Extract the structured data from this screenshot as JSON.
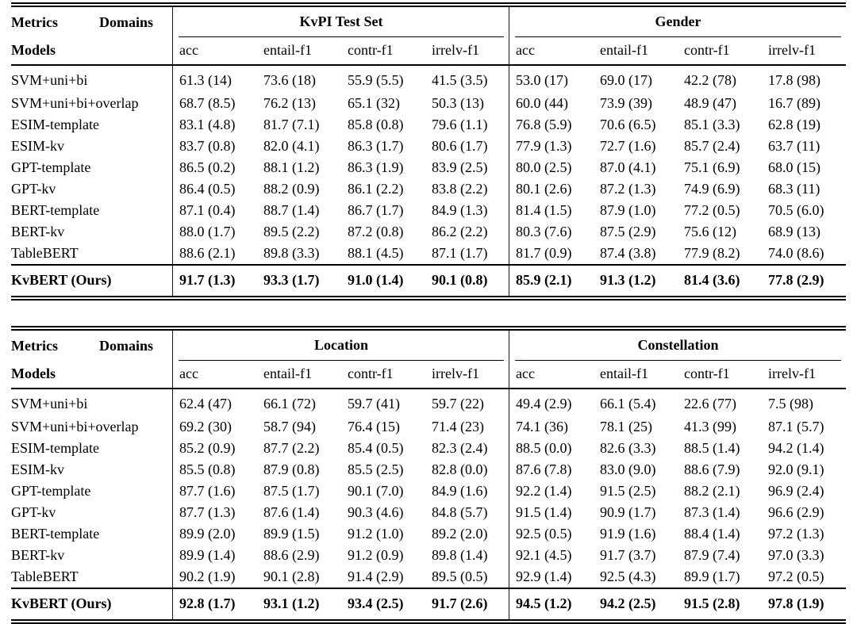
{
  "style": {
    "background": "#ffffff",
    "text_color": "#000000",
    "rule_color": "#000000"
  },
  "tables": [
    {
      "corner": {
        "metrics_label": "Metrics",
        "domains_label": "Domains",
        "models_label": "Models"
      },
      "groups": [
        {
          "title": "KvPI Test Set",
          "metrics": [
            "acc",
            "entail-f1",
            "contr-f1",
            "irrelv-f1"
          ]
        },
        {
          "title": "Gender",
          "metrics": [
            "acc",
            "entail-f1",
            "contr-f1",
            "irrelv-f1"
          ]
        }
      ],
      "rows": [
        {
          "model": "SVM+uni+bi",
          "values": [
            "61.3 (14)",
            "73.6 (18)",
            "55.9 (5.5)",
            "41.5 (3.5)",
            "53.0 (17)",
            "69.0 (17)",
            "42.2 (78)",
            "17.8 (98)"
          ]
        },
        {
          "model": "SVM+uni+bi+overlap",
          "values": [
            "68.7 (8.5)",
            "76.2 (13)",
            "65.1 (32)",
            "50.3 (13)",
            "60.0 (44)",
            "73.9 (39)",
            "48.9 (47)",
            "16.7 (89)"
          ]
        },
        {
          "model": "ESIM-template",
          "values": [
            "83.1 (4.8)",
            "81.7 (7.1)",
            "85.8 (0.8)",
            "79.6 (1.1)",
            "76.8 (5.9)",
            "70.6 (6.5)",
            "85.1 (3.3)",
            "62.8 (19)"
          ]
        },
        {
          "model": "ESIM-kv",
          "values": [
            "83.7 (0.8)",
            "82.0 (4.1)",
            "86.3 (1.7)",
            "80.6 (1.7)",
            "77.9 (1.3)",
            "72.7 (1.6)",
            "85.7 (2.4)",
            "63.7 (11)"
          ]
        },
        {
          "model": "GPT-template",
          "values": [
            "86.5 (0.2)",
            "88.1 (1.2)",
            "86.3 (1.9)",
            "83.9 (2.5)",
            "80.0 (2.5)",
            "87.0 (4.1)",
            "75.1 (6.9)",
            "68.0 (15)"
          ]
        },
        {
          "model": "GPT-kv",
          "values": [
            "86.4 (0.5)",
            "88.2 (0.9)",
            "86.1 (2.2)",
            "83.8 (2.2)",
            "80.1 (2.6)",
            "87.2 (1.3)",
            "74.9 (6.9)",
            "68.3 (11)"
          ]
        },
        {
          "model": "BERT-template",
          "values": [
            "87.1 (0.4)",
            "88.7 (1.4)",
            "86.7 (1.7)",
            "84.9 (1.3)",
            "81.4 (1.5)",
            "87.9 (1.0)",
            "77.2 (0.5)",
            "70.5 (6.0)"
          ]
        },
        {
          "model": "BERT-kv",
          "values": [
            "88.0 (1.7)",
            "89.5 (2.2)",
            "87.2 (0.8)",
            "86.2 (2.2)",
            "80.3 (7.6)",
            "87.5 (2.9)",
            "75.6 (12)",
            "68.9 (13)"
          ]
        },
        {
          "model": "TableBERT",
          "values": [
            "88.6 (2.1)",
            "89.8 (3.3)",
            "88.1 (4.5)",
            "87.1 (1.7)",
            "81.7 (0.9)",
            "87.4 (3.8)",
            "77.9 (8.2)",
            "74.0 (8.6)"
          ]
        }
      ],
      "highlight_row": {
        "model": "KvBERT (Ours)",
        "values": [
          "91.7 (1.3)",
          "93.3 (1.7)",
          "91.0 (1.4)",
          "90.1 (0.8)",
          "85.9 (2.1)",
          "91.3 (1.2)",
          "81.4 (3.6)",
          "77.8 (2.9)"
        ]
      }
    },
    {
      "corner": {
        "metrics_label": "Metrics",
        "domains_label": "Domains",
        "models_label": "Models"
      },
      "groups": [
        {
          "title": "Location",
          "metrics": [
            "acc",
            "entail-f1",
            "contr-f1",
            "irrelv-f1"
          ]
        },
        {
          "title": "Constellation",
          "metrics": [
            "acc",
            "entail-f1",
            "contr-f1",
            "irrelv-f1"
          ]
        }
      ],
      "rows": [
        {
          "model": "SVM+uni+bi",
          "values": [
            "62.4 (47)",
            "66.1 (72)",
            "59.7 (41)",
            "59.7 (22)",
            "49.4 (2.9)",
            "66.1 (5.4)",
            "22.6 (77)",
            "7.5 (98)"
          ]
        },
        {
          "model": "SVM+uni+bi+overlap",
          "values": [
            "69.2 (30)",
            "58.7 (94)",
            "76.4 (15)",
            "71.4 (23)",
            "74.1 (36)",
            "78.1 (25)",
            "41.3 (99)",
            "87.1 (5.7)"
          ]
        },
        {
          "model": "ESIM-template",
          "values": [
            "85.2 (0.9)",
            "87.7 (2.2)",
            "85.4 (0.5)",
            "82.3 (2.4)",
            "88.5 (0.0)",
            "82.6 (3.3)",
            "88.5 (1.4)",
            "94.2 (1.4)"
          ]
        },
        {
          "model": "ESIM-kv",
          "values": [
            "85.5 (0.8)",
            "87.9 (0.8)",
            "85.5 (2.5)",
            "82.8 (0.0)",
            "87.6 (7.8)",
            "83.0 (9.0)",
            "88.6 (7.9)",
            "92.0 (9.1)"
          ]
        },
        {
          "model": "GPT-template",
          "values": [
            "87.7 (1.6)",
            "87.5 (1.7)",
            "90.1 (7.0)",
            "84.9 (1.6)",
            "92.2 (1.4)",
            "91.5 (2.5)",
            "88.2 (2.1)",
            "96.9 (2.4)"
          ]
        },
        {
          "model": "GPT-kv",
          "values": [
            "87.7 (1.3)",
            "87.6 (1.4)",
            "90.3 (4.6)",
            "84.8 (5.7)",
            "91.5 (1.4)",
            "90.9 (1.7)",
            "87.3 (1.4)",
            "96.6 (2.9)"
          ]
        },
        {
          "model": "BERT-template",
          "values": [
            "89.9 (2.0)",
            "89.9 (1.5)",
            "91.2 (1.0)",
            "89.2 (2.0)",
            "92.5 (0.5)",
            "91.9 (1.6)",
            "88.4 (1.4)",
            "97.2 (1.3)"
          ]
        },
        {
          "model": "BERT-kv",
          "values": [
            "89.9 (1.4)",
            "88.6 (2.9)",
            "91.2 (0.9)",
            "89.8 (1.4)",
            "92.1 (4.5)",
            "91.7 (3.7)",
            "87.9 (7.4)",
            "97.0 (3.3)"
          ]
        },
        {
          "model": "TableBERT",
          "values": [
            "90.2 (1.9)",
            "90.1 (2.8)",
            "91.4 (2.9)",
            "89.5 (0.5)",
            "92.9 (1.4)",
            "92.5 (4.3)",
            "89.9 (1.7)",
            "97.2 (0.5)"
          ]
        }
      ],
      "highlight_row": {
        "model": "KvBERT (Ours)",
        "values": [
          "92.8 (1.7)",
          "93.1 (1.2)",
          "93.4 (2.5)",
          "91.7 (2.6)",
          "94.5 (1.2)",
          "94.2 (2.5)",
          "91.5 (2.8)",
          "97.8 (1.9)"
        ]
      }
    }
  ]
}
